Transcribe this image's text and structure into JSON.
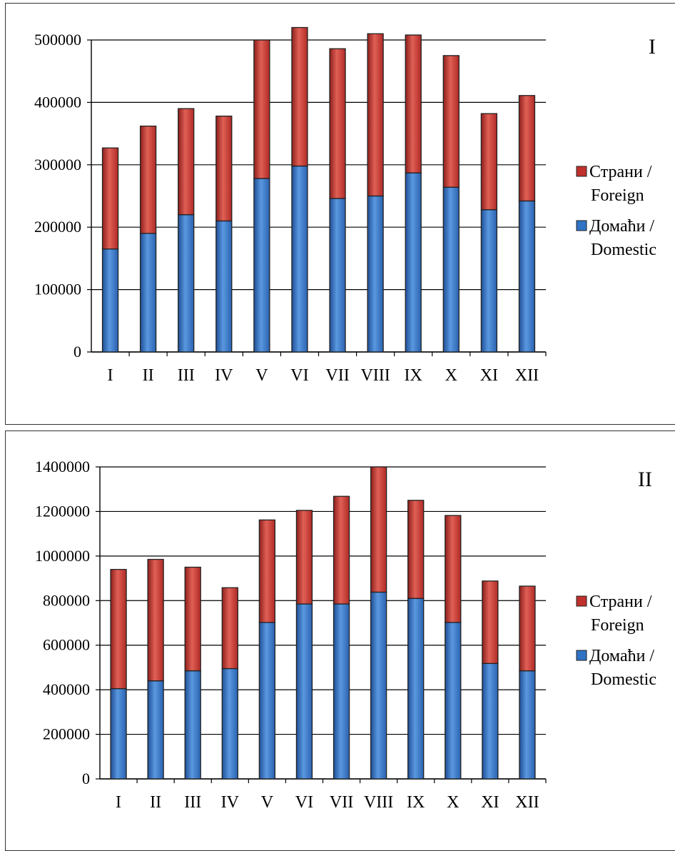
{
  "colors": {
    "foreign": "#c0302c",
    "domestic": "#2f73c5",
    "grid": "#000000"
  },
  "chart_data": [
    {
      "type": "bar",
      "stacked": true,
      "panel_label": "I",
      "categories": [
        "I",
        "II",
        "III",
        "IV",
        "V",
        "VI",
        "VII",
        "VIII",
        "IX",
        "X",
        "XI",
        "XII"
      ],
      "series": [
        {
          "name": "Домаћи / Domestic",
          "values": [
            165000,
            190000,
            220000,
            210000,
            278000,
            298000,
            246000,
            250000,
            287000,
            264000,
            228000,
            242000
          ]
        },
        {
          "name": "Страни / Foreign",
          "values": [
            162000,
            172000,
            170000,
            168000,
            222000,
            222000,
            240000,
            260000,
            221000,
            211000,
            154000,
            169000
          ]
        }
      ],
      "yticks": [
        "0",
        "100000",
        "200000",
        "300000",
        "400000",
        "500000"
      ],
      "ylim": [
        0,
        500000
      ],
      "legend": [
        {
          "label_line1": "Страни /",
          "label_line2": "Foreign",
          "color_key": "foreign"
        },
        {
          "label_line1": "Домаћи /",
          "label_line2": "Domestic",
          "color_key": "domestic"
        }
      ],
      "legend_position": "right",
      "grid": true
    },
    {
      "type": "bar",
      "stacked": true,
      "panel_label": "II",
      "categories": [
        "I",
        "II",
        "III",
        "IV",
        "V",
        "VI",
        "VII",
        "VIII",
        "IX",
        "X",
        "XI",
        "XII"
      ],
      "series": [
        {
          "name": "Домаћи / Domestic",
          "values": [
            405000,
            440000,
            485000,
            495000,
            702000,
            785000,
            785000,
            838000,
            810000,
            702000,
            518000,
            485000
          ]
        },
        {
          "name": "Страни / Foreign",
          "values": [
            535000,
            545000,
            465000,
            363000,
            460000,
            420000,
            483000,
            562000,
            440000,
            480000,
            370000,
            380000
          ]
        }
      ],
      "yticks": [
        "0",
        "200000",
        "400000",
        "600000",
        "800000",
        "1000000",
        "1200000",
        "1400000"
      ],
      "ylim": [
        0,
        1400000
      ],
      "legend": [
        {
          "label_line1": "Страни /",
          "label_line2": "Foreign",
          "color_key": "foreign"
        },
        {
          "label_line1": "Домаћи /",
          "label_line2": "Domestic",
          "color_key": "domestic"
        }
      ],
      "legend_position": "right",
      "grid": true
    }
  ]
}
